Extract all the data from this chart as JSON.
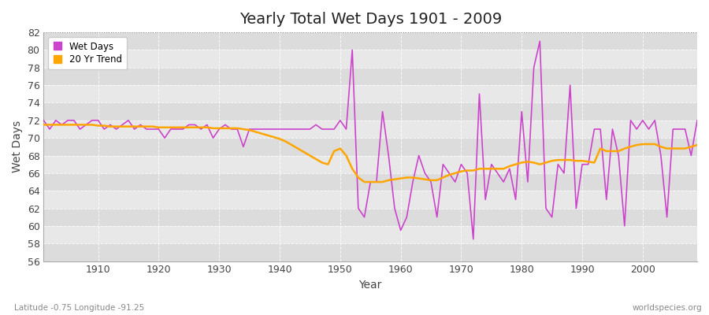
{
  "title": "Yearly Total Wet Days 1901 - 2009",
  "xlabel": "Year",
  "ylabel": "Wet Days",
  "xlim": [
    1901,
    2009
  ],
  "ylim": [
    56,
    82
  ],
  "yticks": [
    56,
    58,
    60,
    62,
    64,
    66,
    68,
    70,
    72,
    74,
    76,
    78,
    80,
    82
  ],
  "xticks": [
    1910,
    1920,
    1930,
    1940,
    1950,
    1960,
    1970,
    1980,
    1990,
    2000
  ],
  "wet_days_color": "#CC44CC",
  "trend_color": "#FFA500",
  "bg_color": "#FFFFFF",
  "plot_bg_color": "#E0E0E0",
  "band_color1": "#DCDCDC",
  "band_color2": "#E8E8E8",
  "grid_color": "#FFFFFF",
  "footnote_left": "Latitude -0.75 Longitude -91.25",
  "footnote_right": "worldspecies.org",
  "legend_labels": [
    "Wet Days",
    "20 Yr Trend"
  ],
  "years": [
    1901,
    1902,
    1903,
    1904,
    1905,
    1906,
    1907,
    1908,
    1909,
    1910,
    1911,
    1912,
    1913,
    1914,
    1915,
    1916,
    1917,
    1918,
    1919,
    1920,
    1921,
    1922,
    1923,
    1924,
    1925,
    1926,
    1927,
    1928,
    1929,
    1930,
    1931,
    1932,
    1933,
    1934,
    1935,
    1936,
    1937,
    1938,
    1939,
    1940,
    1941,
    1942,
    1943,
    1944,
    1945,
    1946,
    1947,
    1948,
    1949,
    1950,
    1951,
    1952,
    1953,
    1954,
    1955,
    1956,
    1957,
    1958,
    1959,
    1960,
    1961,
    1962,
    1963,
    1964,
    1965,
    1966,
    1967,
    1968,
    1969,
    1970,
    1971,
    1972,
    1973,
    1974,
    1975,
    1976,
    1977,
    1978,
    1979,
    1980,
    1981,
    1982,
    1983,
    1984,
    1985,
    1986,
    1987,
    1988,
    1989,
    1990,
    1991,
    1992,
    1993,
    1994,
    1995,
    1996,
    1997,
    1998,
    1999,
    2000,
    2001,
    2002,
    2003,
    2004,
    2005,
    2006,
    2007,
    2008,
    2009
  ],
  "wet_days": [
    72,
    71,
    72,
    71.5,
    72,
    72,
    71,
    71.5,
    72,
    72,
    71,
    71.5,
    71,
    71.5,
    72,
    71,
    71.5,
    71,
    71,
    71,
    70,
    71,
    71,
    71,
    71.5,
    71.5,
    71,
    71.5,
    70,
    71,
    71.5,
    71,
    71,
    69,
    71,
    71,
    71,
    71,
    71,
    71,
    71,
    71,
    71,
    71,
    71,
    71.5,
    71,
    71,
    71,
    72,
    71,
    80,
    62,
    61,
    65,
    65,
    73,
    68,
    62,
    59.5,
    61,
    65,
    68,
    66,
    65,
    61,
    67,
    66,
    65,
    67,
    66,
    58.5,
    75,
    63,
    67,
    66,
    65,
    66.5,
    63,
    73,
    65,
    78,
    81,
    62,
    61,
    67,
    66,
    76,
    62,
    67,
    67,
    71,
    71,
    63,
    71,
    68,
    60,
    72,
    71,
    72,
    71,
    72,
    68,
    61,
    71,
    71,
    71,
    68,
    72
  ],
  "trend_years": [
    1901,
    1902,
    1903,
    1904,
    1905,
    1906,
    1907,
    1908,
    1909,
    1910,
    1911,
    1912,
    1913,
    1914,
    1915,
    1916,
    1917,
    1918,
    1919,
    1920,
    1921,
    1922,
    1923,
    1924,
    1925,
    1926,
    1927,
    1928,
    1929,
    1930,
    1931,
    1932,
    1933,
    1934,
    1935,
    1936,
    1937,
    1938,
    1939,
    1940,
    1941,
    1942,
    1943,
    1944,
    1945,
    1946,
    1947,
    1948,
    1949,
    1950,
    1951,
    1952,
    1953,
    1954,
    1955,
    1956,
    1957,
    1958,
    1959,
    1960,
    1961,
    1962,
    1963,
    1964,
    1965,
    1966,
    1967,
    1968,
    1969,
    1970,
    1971,
    1972,
    1973,
    1974,
    1975,
    1976,
    1977,
    1978,
    1979,
    1980,
    1981,
    1982,
    1983,
    1984,
    1985,
    1986,
    1987,
    1988,
    1989,
    1990,
    1991,
    1992,
    1993,
    1994,
    1995,
    1996,
    1997,
    1998,
    1999,
    2000,
    2001,
    2002,
    2003,
    2004,
    2005,
    2006,
    2007,
    2008,
    2009
  ],
  "trend_values": [
    71.5,
    71.5,
    71.5,
    71.5,
    71.5,
    71.5,
    71.5,
    71.5,
    71.5,
    71.4,
    71.4,
    71.3,
    71.3,
    71.3,
    71.3,
    71.3,
    71.3,
    71.3,
    71.3,
    71.2,
    71.2,
    71.2,
    71.2,
    71.2,
    71.2,
    71.2,
    71.2,
    71.2,
    71.1,
    71.1,
    71.1,
    71.1,
    71.1,
    71.0,
    70.9,
    70.7,
    70.5,
    70.3,
    70.1,
    69.9,
    69.6,
    69.2,
    68.8,
    68.4,
    68.0,
    67.6,
    67.2,
    67.0,
    68.5,
    68.8,
    68.0,
    66.5,
    65.5,
    65.0,
    65.0,
    65.0,
    65.0,
    65.2,
    65.3,
    65.4,
    65.5,
    65.5,
    65.4,
    65.3,
    65.2,
    65.2,
    65.5,
    65.8,
    66.0,
    66.2,
    66.3,
    66.3,
    66.5,
    66.5,
    66.5,
    66.5,
    66.5,
    66.8,
    67.0,
    67.2,
    67.3,
    67.2,
    67.0,
    67.2,
    67.4,
    67.5,
    67.5,
    67.5,
    67.4,
    67.4,
    67.3,
    67.2,
    68.8,
    68.5,
    68.5,
    68.5,
    68.8,
    69.0,
    69.2,
    69.3,
    69.3,
    69.3,
    69.0,
    68.8,
    68.8,
    68.8,
    68.8,
    69.0,
    69.2
  ]
}
